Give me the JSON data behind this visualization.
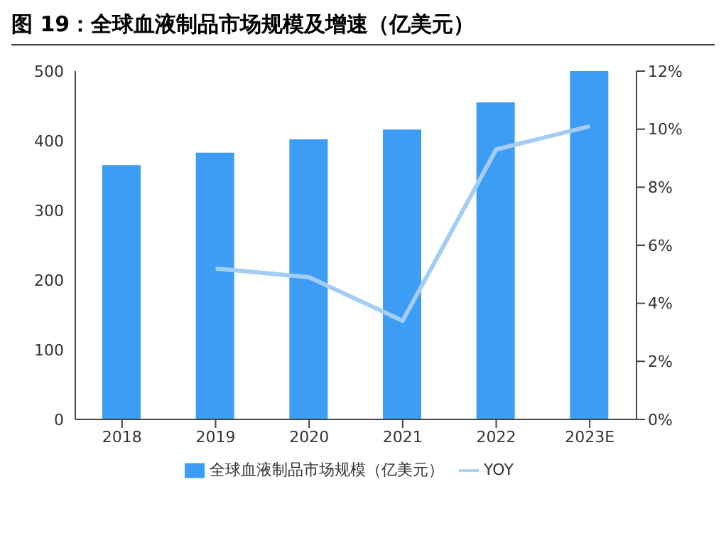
{
  "chart_data": {
    "type": "bar",
    "title": "图 19：全球血液制品市场规模及增速（亿美元）",
    "categories": [
      "2018",
      "2019",
      "2020",
      "2021",
      "2022",
      "2023E"
    ],
    "series": [
      {
        "name": "全球血液制品市场规模（亿美元）",
        "color": "#3d9df5",
        "values": [
          365,
          383,
          402,
          416,
          455,
          500
        ]
      },
      {
        "name": "YOY",
        "type": "line",
        "axis": "y2",
        "color": "#a3cdf5",
        "values": [
          null,
          5.2,
          4.9,
          3.4,
          9.3,
          10.1
        ],
        "marker": "none"
      }
    ],
    "ylim": [
      0,
      500
    ],
    "yticks": [
      0,
      100,
      200,
      300,
      400,
      500
    ],
    "y2lim": [
      0,
      12
    ],
    "y2ticks": [
      {
        "value": 0,
        "label": "0%"
      },
      {
        "value": 2,
        "label": "2%"
      },
      {
        "value": 4,
        "label": "4%"
      },
      {
        "value": 6,
        "label": "6%"
      },
      {
        "value": 8,
        "label": "8%"
      },
      {
        "value": 10,
        "label": "10%"
      },
      {
        "value": 12,
        "label": "12%"
      }
    ],
    "grid": false,
    "legend": "bottom"
  }
}
